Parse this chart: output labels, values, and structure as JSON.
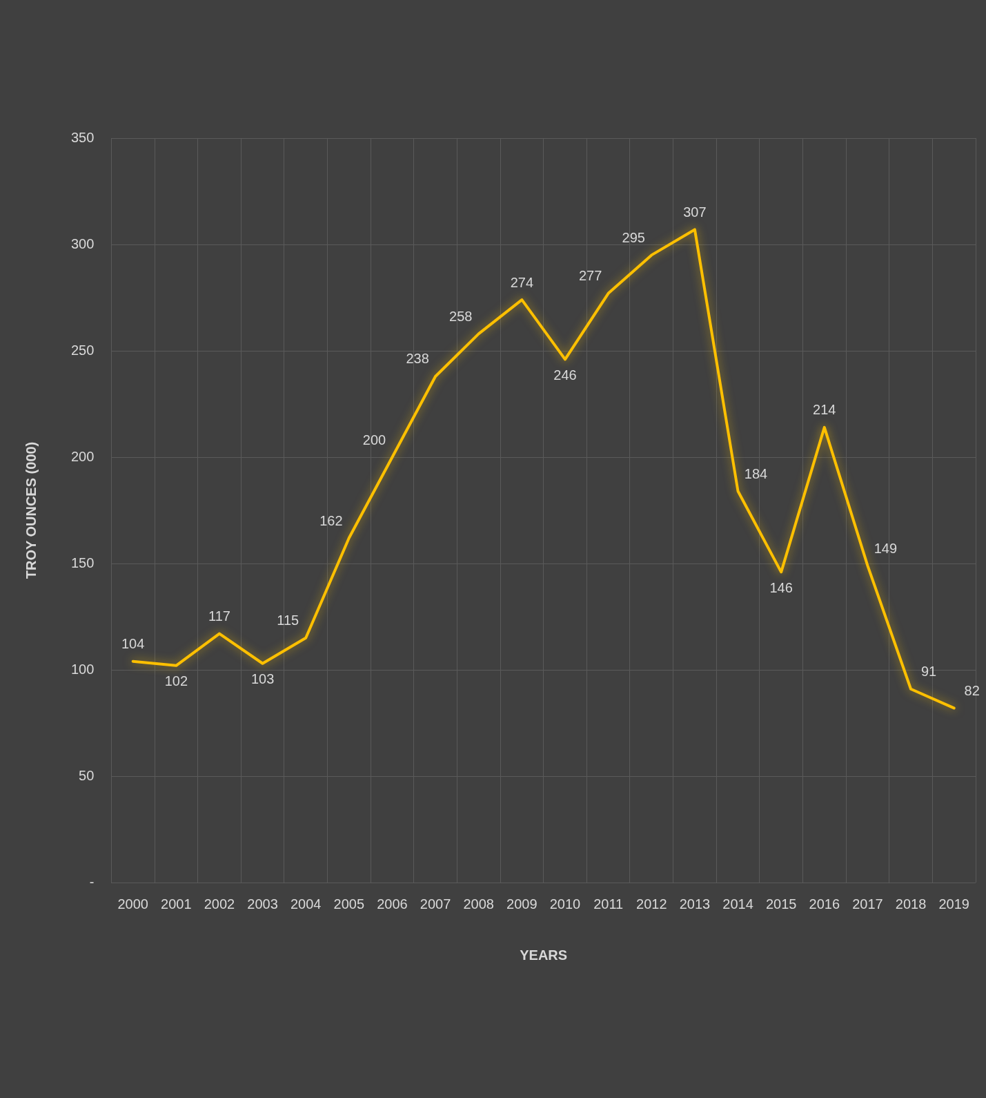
{
  "chart_data": {
    "type": "line",
    "xlabel": "YEARS",
    "ylabel": "TROY OUNCES (000)",
    "categories": [
      "2000",
      "2001",
      "2002",
      "2003",
      "2004",
      "2005",
      "2006",
      "2007",
      "2008",
      "2009",
      "2010",
      "2011",
      "2012",
      "2013",
      "2014",
      "2015",
      "2016",
      "2017",
      "2018",
      "2019"
    ],
    "series": [
      {
        "color": "#ffc000",
        "values": [
          104,
          102,
          117,
          103,
          115,
          162,
          200,
          238,
          258,
          274,
          246,
          277,
          295,
          307,
          184,
          146,
          214,
          149,
          91,
          82
        ]
      }
    ],
    "ylim": [
      0,
      350
    ],
    "yticks": [
      {
        "value": 0,
        "label": "-"
      },
      50,
      100,
      150,
      200,
      250,
      300,
      350
    ],
    "grid": true,
    "legend": false,
    "marker": "none",
    "line_style": "solid",
    "data_labels": true
  }
}
